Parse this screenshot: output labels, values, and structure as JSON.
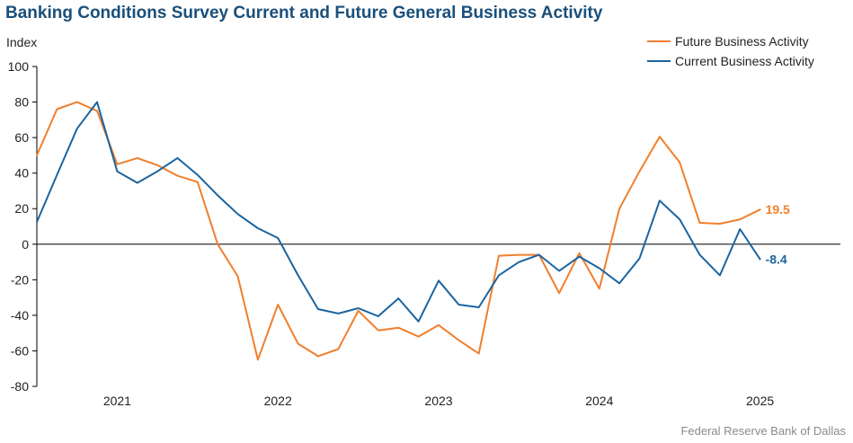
{
  "chart_data": {
    "type": "line",
    "title": "Banking Conditions Survey Current and Future General Business Activity",
    "ylabel": "Index",
    "ylim": [
      -80,
      100
    ],
    "yticks": [
      100,
      80,
      60,
      40,
      20,
      0,
      -20,
      -40,
      -60,
      -80
    ],
    "x_start": 2020.5,
    "x_end": 2025.5,
    "x_step": 0.125,
    "xticks": [
      "2021",
      "2022",
      "2023",
      "2024",
      "2025"
    ],
    "xtick_positions": [
      2021,
      2022,
      2023,
      2024,
      2025
    ],
    "legend_position": "top-right",
    "series": [
      {
        "name": "Future Business Activity",
        "color": "#f07f2c",
        "end_label": "19.5",
        "values": [
          50,
          76,
          80,
          75,
          45,
          48.5,
          44.5,
          38.5,
          35,
          0,
          -18,
          -65,
          -34,
          -56,
          -63,
          -59,
          -37.5,
          -48.5,
          -47,
          -52,
          -45.5,
          -54,
          -61.5,
          -6.5,
          -6,
          -6,
          -27.5,
          -5,
          -25,
          20,
          41,
          60.5,
          46,
          12,
          11.5,
          14,
          19.5
        ]
      },
      {
        "name": "Current Business Activity",
        "color": "#1b64a0",
        "end_label": "-8.4",
        "values": [
          12.5,
          39,
          65,
          80,
          41,
          34.5,
          41,
          48.5,
          39,
          27.5,
          17,
          9,
          3.5,
          -17.5,
          -36.5,
          -39,
          -36,
          -40.5,
          -30.5,
          -43.5,
          -20.5,
          -34,
          -35.5,
          -17.5,
          -10,
          -6,
          -15,
          -7,
          -13.5,
          -22,
          -8,
          24.5,
          14,
          -6,
          -17.5,
          8.5,
          -8.4
        ]
      }
    ]
  },
  "source": "Federal Reserve Bank of Dallas"
}
